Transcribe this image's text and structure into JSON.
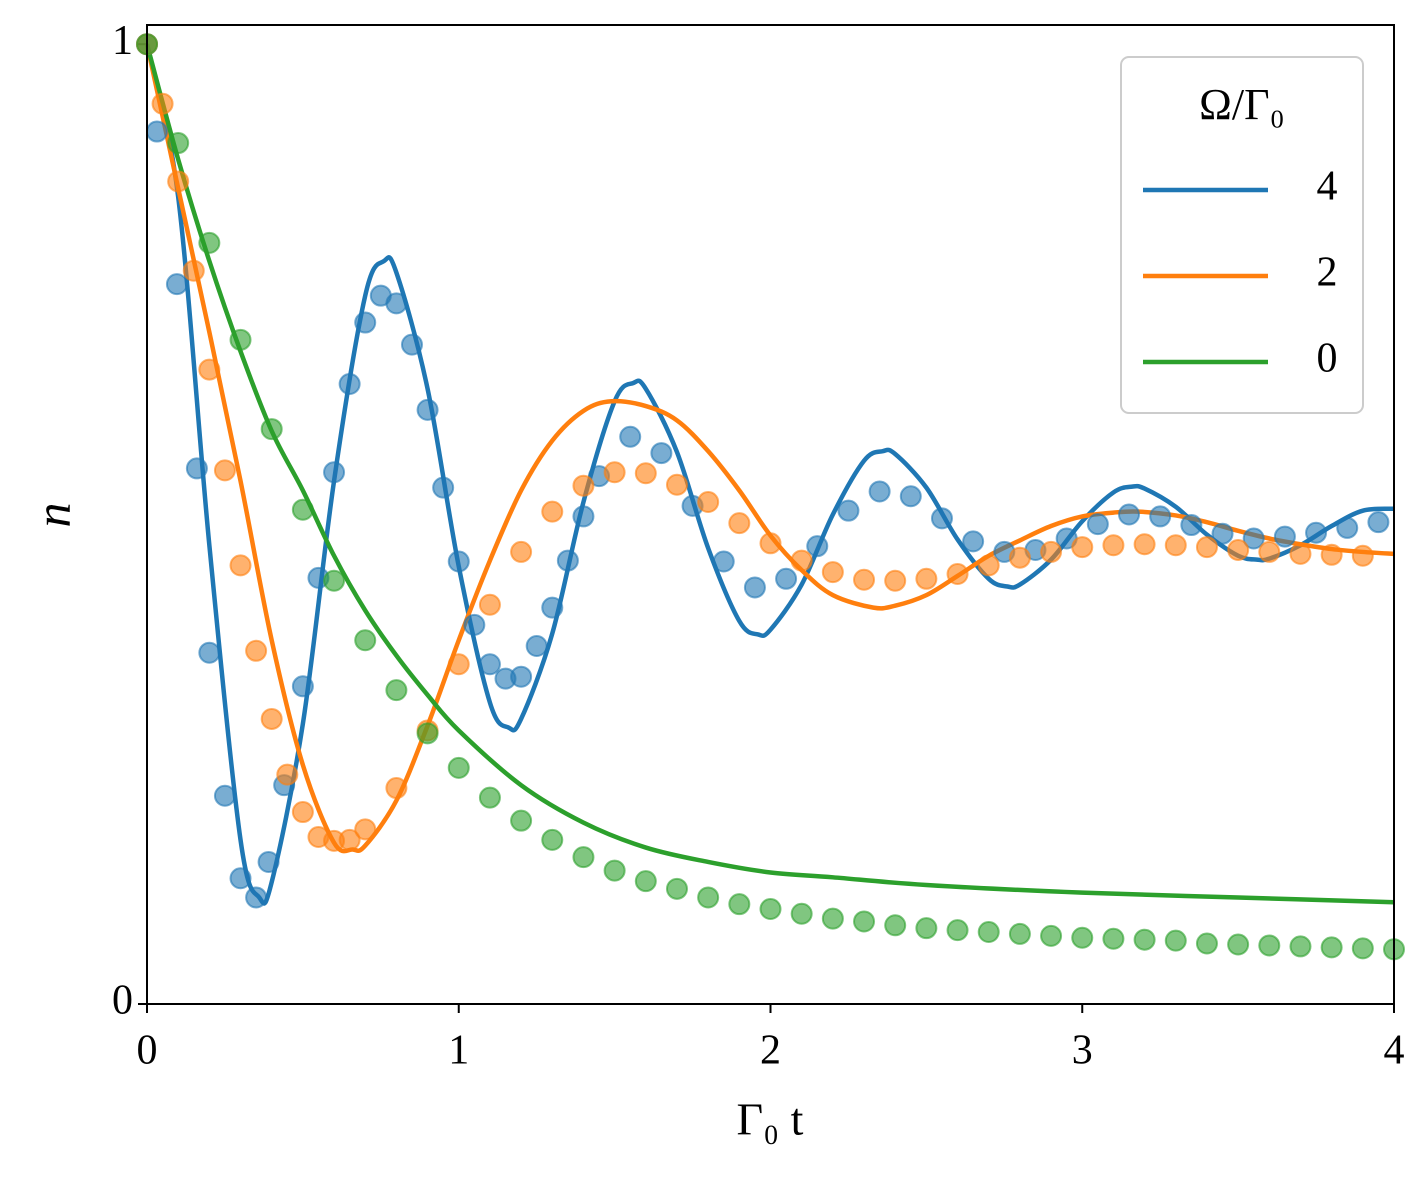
{
  "chart_data": {
    "type": "line",
    "xlabel": "Γ₀ t",
    "ylabel": "n",
    "legend_title": "Ω/Γ₀",
    "legend": "upper right",
    "xlim": [
      0,
      4
    ],
    "ylim": [
      0,
      1.02
    ],
    "xticks": [
      0,
      1,
      2,
      3,
      4
    ],
    "yticks": [
      0,
      1
    ],
    "series": [
      {
        "name": "4",
        "color": "#1f77b4",
        "line_x": [
          0,
          0.1,
          0.2,
          0.3,
          0.36,
          0.4,
          0.5,
          0.6,
          0.7,
          0.76,
          0.8,
          0.9,
          1.0,
          1.1,
          1.16,
          1.2,
          1.3,
          1.4,
          1.5,
          1.56,
          1.6,
          1.7,
          1.8,
          1.9,
          1.96,
          2.0,
          2.1,
          2.2,
          2.3,
          2.36,
          2.4,
          2.5,
          2.6,
          2.7,
          2.76,
          2.8,
          2.9,
          3.0,
          3.1,
          3.16,
          3.2,
          3.3,
          3.4,
          3.5,
          3.56,
          3.6,
          3.7,
          3.8,
          3.9,
          4.0
        ],
        "values": [
          1.0,
          0.841,
          0.478,
          0.171,
          0.111,
          0.127,
          0.292,
          0.545,
          0.738,
          0.774,
          0.762,
          0.641,
          0.456,
          0.314,
          0.288,
          0.297,
          0.386,
          0.523,
          0.628,
          0.647,
          0.641,
          0.575,
          0.475,
          0.399,
          0.385,
          0.39,
          0.437,
          0.51,
          0.566,
          0.576,
          0.573,
          0.538,
          0.484,
          0.443,
          0.435,
          0.437,
          0.463,
          0.503,
          0.533,
          0.539,
          0.537,
          0.518,
          0.489,
          0.467,
          0.463,
          0.464,
          0.478,
          0.498,
          0.514,
          0.516
        ],
        "points_x": [
          0,
          0.032,
          0.096,
          0.16,
          0.2,
          0.25,
          0.3,
          0.35,
          0.39,
          0.44,
          0.5,
          0.55,
          0.6,
          0.65,
          0.7,
          0.75,
          0.8,
          0.85,
          0.9,
          0.95,
          1.0,
          1.05,
          1.1,
          1.15,
          1.2,
          1.25,
          1.3,
          1.35,
          1.4,
          1.45,
          1.55,
          1.65,
          1.75,
          1.85,
          1.95,
          2.05,
          2.15,
          2.25,
          2.35,
          2.45,
          2.55,
          2.65,
          2.75,
          2.85,
          2.95,
          3.05,
          3.15,
          3.25,
          3.35,
          3.45,
          3.55,
          3.65,
          3.75,
          3.85,
          3.95
        ],
        "points": [
          1.0,
          0.909,
          0.75,
          0.558,
          0.366,
          0.217,
          0.131,
          0.111,
          0.148,
          0.228,
          0.331,
          0.444,
          0.554,
          0.646,
          0.71,
          0.738,
          0.73,
          0.687,
          0.619,
          0.538,
          0.461,
          0.395,
          0.354,
          0.339,
          0.341,
          0.373,
          0.413,
          0.462,
          0.508,
          0.55,
          0.591,
          0.574,
          0.519,
          0.461,
          0.434,
          0.443,
          0.477,
          0.514,
          0.534,
          0.529,
          0.506,
          0.482,
          0.471,
          0.473,
          0.485,
          0.5,
          0.51,
          0.508,
          0.499,
          0.49,
          0.485,
          0.487,
          0.491,
          0.496,
          0.502
        ]
      },
      {
        "name": "2",
        "color": "#ff7f0e",
        "line_x": [
          0,
          0.1,
          0.2,
          0.3,
          0.4,
          0.5,
          0.6,
          0.66,
          0.7,
          0.8,
          0.9,
          1.0,
          1.1,
          1.2,
          1.3,
          1.4,
          1.49,
          1.6,
          1.7,
          1.8,
          1.9,
          2.0,
          2.1,
          2.2,
          2.33,
          2.4,
          2.5,
          2.6,
          2.7,
          2.8,
          2.9,
          3.0,
          3.1,
          3.18,
          3.3,
          3.4,
          3.5,
          3.6,
          3.7,
          3.8,
          3.9,
          4.0
        ],
        "values": [
          1.0,
          0.85,
          0.7,
          0.545,
          0.379,
          0.249,
          0.168,
          0.161,
          0.165,
          0.212,
          0.29,
          0.379,
          0.462,
          0.535,
          0.587,
          0.618,
          0.628,
          0.623,
          0.608,
          0.576,
          0.535,
          0.488,
          0.452,
          0.426,
          0.413,
          0.415,
          0.426,
          0.446,
          0.467,
          0.483,
          0.498,
          0.508,
          0.512,
          0.513,
          0.509,
          0.502,
          0.493,
          0.485,
          0.479,
          0.474,
          0.471,
          0.469
        ],
        "points_x": [
          0,
          0.05,
          0.1,
          0.15,
          0.2,
          0.25,
          0.3,
          0.35,
          0.4,
          0.45,
          0.5,
          0.55,
          0.6,
          0.65,
          0.7,
          0.8,
          0.9,
          1.0,
          1.1,
          1.2,
          1.3,
          1.4,
          1.5,
          1.6,
          1.7,
          1.8,
          1.9,
          2.0,
          2.1,
          2.2,
          2.3,
          2.4,
          2.5,
          2.6,
          2.7,
          2.8,
          2.9,
          3.0,
          3.1,
          3.2,
          3.3,
          3.4,
          3.5,
          3.6,
          3.7,
          3.8,
          3.9
        ],
        "points": [
          1.0,
          0.938,
          0.857,
          0.764,
          0.661,
          0.556,
          0.457,
          0.368,
          0.297,
          0.239,
          0.2,
          0.174,
          0.17,
          0.171,
          0.182,
          0.225,
          0.285,
          0.354,
          0.416,
          0.471,
          0.513,
          0.54,
          0.554,
          0.553,
          0.541,
          0.523,
          0.501,
          0.48,
          0.462,
          0.45,
          0.442,
          0.441,
          0.443,
          0.448,
          0.457,
          0.465,
          0.471,
          0.476,
          0.478,
          0.479,
          0.478,
          0.476,
          0.473,
          0.471,
          0.469,
          0.468,
          0.467
        ]
      },
      {
        "name": "0",
        "color": "#2ca02c",
        "line_x": [
          0,
          0.1,
          0.2,
          0.3,
          0.4,
          0.5,
          0.6,
          0.7,
          0.8,
          0.9,
          1.0,
          1.2,
          1.4,
          1.6,
          1.8,
          2.0,
          2.2,
          2.5,
          3.0,
          3.5,
          4.0
        ],
        "values": [
          1.0,
          0.88,
          0.774,
          0.68,
          0.597,
          0.535,
          0.467,
          0.41,
          0.363,
          0.322,
          0.285,
          0.228,
          0.189,
          0.163,
          0.148,
          0.137,
          0.132,
          0.124,
          0.116,
          0.111,
          0.106
        ],
        "points_x": [
          0,
          0.1,
          0.2,
          0.3,
          0.4,
          0.5,
          0.6,
          0.7,
          0.8,
          0.9,
          1.0,
          1.1,
          1.2,
          1.3,
          1.4,
          1.5,
          1.6,
          1.7,
          1.8,
          1.9,
          2.0,
          2.1,
          2.2,
          2.3,
          2.4,
          2.5,
          2.6,
          2.7,
          2.8,
          2.9,
          3.0,
          3.1,
          3.2,
          3.3,
          3.4,
          3.5,
          3.6,
          3.7,
          3.8,
          3.9,
          4.0
        ],
        "points": [
          1.0,
          0.897,
          0.793,
          0.692,
          0.599,
          0.515,
          0.441,
          0.379,
          0.327,
          0.282,
          0.246,
          0.215,
          0.191,
          0.171,
          0.153,
          0.139,
          0.128,
          0.12,
          0.111,
          0.104,
          0.099,
          0.094,
          0.089,
          0.086,
          0.082,
          0.079,
          0.077,
          0.075,
          0.073,
          0.071,
          0.069,
          0.068,
          0.067,
          0.066,
          0.063,
          0.062,
          0.061,
          0.06,
          0.059,
          0.058,
          0.057
        ]
      }
    ]
  }
}
